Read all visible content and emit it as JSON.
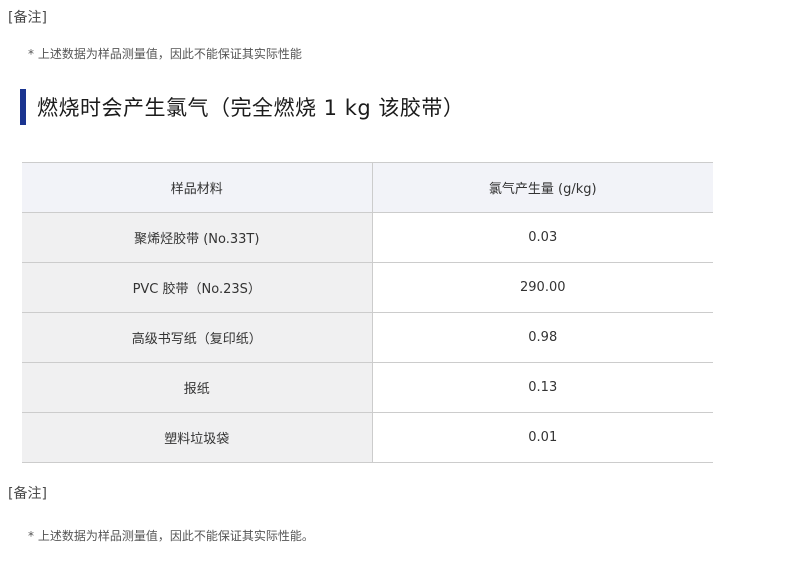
{
  "notes_top": {
    "label": "[备注]",
    "text": "* 上述数据为样品测量值，因此不能保证其实际性能"
  },
  "heading": {
    "text": "燃烧时会产生氯气（完全燃烧 1 kg 该胶带）"
  },
  "chart_data": {
    "type": "table",
    "title": "燃烧时会产生氯气（完全燃烧 1 kg 该胶带）",
    "columns": [
      "样品材料",
      "氯气产生量 (g/kg)"
    ],
    "rows": [
      [
        "聚烯烃胶带 (No.33T)",
        "0.03"
      ],
      [
        "PVC 胶带（No.23S）",
        "290.00"
      ],
      [
        "高级书写纸（复印纸）",
        "0.98"
      ],
      [
        "报纸",
        "0.13"
      ],
      [
        "塑料垃圾袋",
        "0.01"
      ]
    ]
  },
  "notes_bottom": {
    "label": "[备注]",
    "text": "* 上述数据为样品测量值，因此不能保证其实际性能。"
  },
  "colors": {
    "accent_bar": "#1a3490",
    "header_bg": "#f2f3f8",
    "label_cell_bg": "#f0f0f1",
    "border": "#cccccc"
  }
}
